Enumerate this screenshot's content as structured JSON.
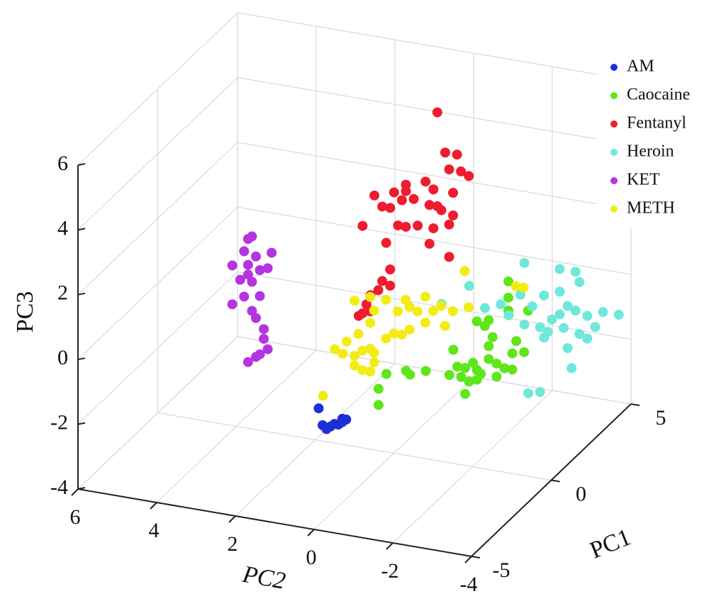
{
  "chart_data": {
    "type": "scatter3d",
    "xlabel": "PC1",
    "ylabel": "PC2",
    "zlabel": "PC3",
    "xlim": [
      -5,
      5
    ],
    "ylim": [
      -4,
      6
    ],
    "zlim": [
      -4,
      6
    ],
    "xticks": [
      -5,
      0,
      5
    ],
    "yticks": [
      -4,
      -2,
      0,
      2,
      4,
      6
    ],
    "zticks": [
      -4,
      -2,
      0,
      2,
      4,
      6
    ],
    "grid": true,
    "series": [
      {
        "name": "AM",
        "color": "#1f2fd6",
        "x": [
          -2,
          -2,
          -2,
          -2,
          -2,
          -2,
          -2,
          -2,
          -2
        ],
        "y": [
          1.1,
          1.0,
          0.9,
          0.7,
          0.5,
          0.4,
          0.8,
          0.6,
          0.5
        ],
        "z": [
          -1.9,
          -2.4,
          -2.5,
          -2.3,
          -2.2,
          -2.1,
          -2.4,
          -2.3,
          -2.1
        ]
      },
      {
        "name": "Caocaine",
        "color": "#5ee61a",
        "x": [
          2,
          2,
          2,
          2,
          2,
          2,
          2,
          2,
          2,
          2,
          2,
          2,
          2,
          2,
          2,
          2,
          2,
          2,
          2,
          2,
          2,
          2,
          2,
          2,
          2,
          2,
          2,
          2,
          2,
          2,
          2,
          2,
          2,
          2
        ],
        "y": [
          -2.1,
          -2.1,
          -1.6,
          -1.3,
          -1.5,
          -1.7,
          -1.6,
          -2.1,
          -2.6,
          -2.2,
          -2.5,
          -1.6,
          -1.3,
          -1.0,
          -0.8,
          -0.9,
          -1.1,
          -1.3,
          -1.4,
          -1.8,
          -2.0,
          -2.2,
          -1.8,
          -0.7,
          -0.6,
          -1.0,
          0.0,
          0.4,
          0.5,
          1.0,
          1.2,
          1.2,
          -1.2,
          -2.3
        ],
        "z": [
          0.8,
          0.3,
          -0.5,
          -0.6,
          -0.7,
          -1.0,
          -1.3,
          -0.1,
          0.0,
          -1.4,
          -1.3,
          -1.7,
          -2.1,
          -2.1,
          -2.1,
          -2.4,
          -2.5,
          -2.4,
          -2.2,
          -2.2,
          -1.9,
          -1.9,
          -1.8,
          -1.6,
          -2.4,
          -2.9,
          -2.4,
          -2.6,
          -2.5,
          -2.7,
          -3.2,
          -3.7,
          -1.9,
          -1.0
        ]
      },
      {
        "name": "Fentanyl",
        "color": "#ee1c2e",
        "x": [
          1,
          1,
          1,
          1,
          1,
          1,
          1,
          1,
          1,
          1,
          1,
          1,
          1,
          1,
          1,
          1,
          1,
          1,
          1,
          1,
          1,
          1,
          1,
          1,
          1,
          1,
          1,
          1,
          1,
          1,
          1,
          1,
          1,
          1,
          1,
          1,
          1,
          1,
          1
        ],
        "y": [
          -0.7,
          -0.9,
          -1.2,
          -1.0,
          -1.3,
          -1.5,
          -1.1,
          -0.4,
          -0.6,
          0.1,
          0.1,
          0.2,
          0.4,
          0.9,
          0.7,
          0.5,
          -0.1,
          -0.5,
          -0.8,
          -1.1,
          -0.7,
          0.3,
          0.1,
          -0.2,
          -0.6,
          -1.0,
          1.2,
          0.6,
          -0.5,
          -1.0,
          0.5,
          0.7,
          0.5,
          1.0,
          1.1,
          1.3,
          1.0,
          0.8,
          1.2
        ],
        "z": [
          6.2,
          5.0,
          5.0,
          4.5,
          4.5,
          4.4,
          3.8,
          4.0,
          3.8,
          3.8,
          3.6,
          3.3,
          3.5,
          3.3,
          3.0,
          3.0,
          3.4,
          3.3,
          3.2,
          3.1,
          3.3,
          2.5,
          2.5,
          2.6,
          2.6,
          2.8,
          2.3,
          1.9,
          2.1,
          1.8,
          1.1,
          0.7,
          0.6,
          0.2,
          -0.1,
          -0.5,
          -0.3,
          0.4,
          -0.4
        ]
      },
      {
        "name": "Heroin",
        "color": "#6fe8da",
        "x": [
          3,
          3,
          3,
          3,
          3,
          3,
          3,
          3,
          3,
          3,
          3,
          3,
          3,
          3,
          3,
          3,
          3,
          3,
          3,
          3,
          3,
          3,
          3,
          3,
          3,
          3,
          3,
          3,
          3,
          3,
          3,
          3
        ],
        "y": [
          -2.1,
          -3.0,
          -3.4,
          -3.5,
          -0.7,
          0.0,
          -1.1,
          -1.5,
          -1.7,
          -2.3,
          -2.6,
          -3.0,
          -3.2,
          -3.4,
          -3.7,
          -4.1,
          -4.5,
          -3.9,
          -3.5,
          -3.1,
          -2.8,
          -2.5,
          -2.7,
          -3.2,
          -3.7,
          -3.3,
          -2.2,
          -2.5,
          -2.6,
          -2.1,
          -2.0,
          -3.0
        ],
        "z": [
          0.9,
          0.9,
          0.9,
          0.6,
          -0.1,
          -0.8,
          -0.7,
          -0.5,
          -0.8,
          -0.4,
          0.0,
          0.2,
          -0.2,
          -0.3,
          -0.4,
          -0.2,
          -0.2,
          -0.7,
          -1.0,
          -0.9,
          -0.7,
          -1.0,
          -1.1,
          -1.5,
          -1.1,
          -2.1,
          -3.1,
          -3.0,
          -1.3,
          -1.0,
          -0.1,
          -0.5
        ]
      },
      {
        "name": "KET",
        "color": "#b534e0",
        "x": [
          -1,
          -1,
          -1,
          -1,
          -1,
          -1,
          -1,
          -1,
          -1,
          -1,
          -1,
          -1,
          -1,
          -1,
          -1,
          -1,
          -1,
          -1,
          -1,
          -1,
          -1,
          -1,
          -1
        ],
        "y": [
          3.3,
          3.2,
          3.4,
          3.1,
          3.3,
          3.0,
          2.8,
          2.7,
          3.7,
          3.5,
          3.2,
          3.0,
          3.4,
          3.7,
          3.2,
          3.1,
          2.9,
          2.8,
          3.0,
          3.3,
          3.1,
          2.9,
          3.3
        ],
        "z": [
          2.4,
          2.5,
          2.0,
          1.9,
          1.6,
          1.5,
          1.6,
          2.1,
          1.5,
          1.1,
          1.1,
          0.7,
          0.6,
          0.3,
          0.2,
          0.0,
          -0.6,
          -0.9,
          -1.1,
          -1.4,
          -1.2,
          -0.3,
          1.3
        ]
      },
      {
        "name": "METH",
        "color": "#f2ec14",
        "x": [
          0,
          0,
          0,
          0,
          0,
          0,
          0,
          0,
          0,
          0,
          0,
          0,
          0,
          0,
          0,
          0,
          0,
          0,
          0,
          0,
          0,
          0,
          0,
          0,
          0,
          0,
          0,
          0,
          0,
          0,
          0,
          0,
          0,
          0,
          0,
          0
        ],
        "y": [
          -1.8,
          -3.3,
          -1.9,
          -1.5,
          -1.3,
          -1.2,
          -0.8,
          -0.6,
          -0.4,
          -0.3,
          -0.1,
          0.2,
          1.0,
          0.6,
          0.5,
          -0.8,
          -0.4,
          0.6,
          0.9,
          1.2,
          1.5,
          1.3,
          1.0,
          0.8,
          0.6,
          0.5,
          0.2,
          0.0,
          1.0,
          0.8,
          0.6,
          0.5,
          1.8,
          -1.0,
          -0.2,
          -3.1
        ],
        "z": [
          2.0,
          1.8,
          0.9,
          0.7,
          0.2,
          0.8,
          1.0,
          0.5,
          0.6,
          0.8,
          0.4,
          0.7,
          0.5,
          0.7,
          0.3,
          0.2,
          -0.1,
          -0.1,
          -0.5,
          -0.8,
          -1.1,
          -1.2,
          -1.2,
          -1.0,
          -0.9,
          -1.0,
          -0.5,
          -0.3,
          -1.5,
          -1.6,
          -1.6,
          -1.3,
          -2.6,
          0.6,
          -0.3,
          1.8
        ]
      }
    ]
  }
}
